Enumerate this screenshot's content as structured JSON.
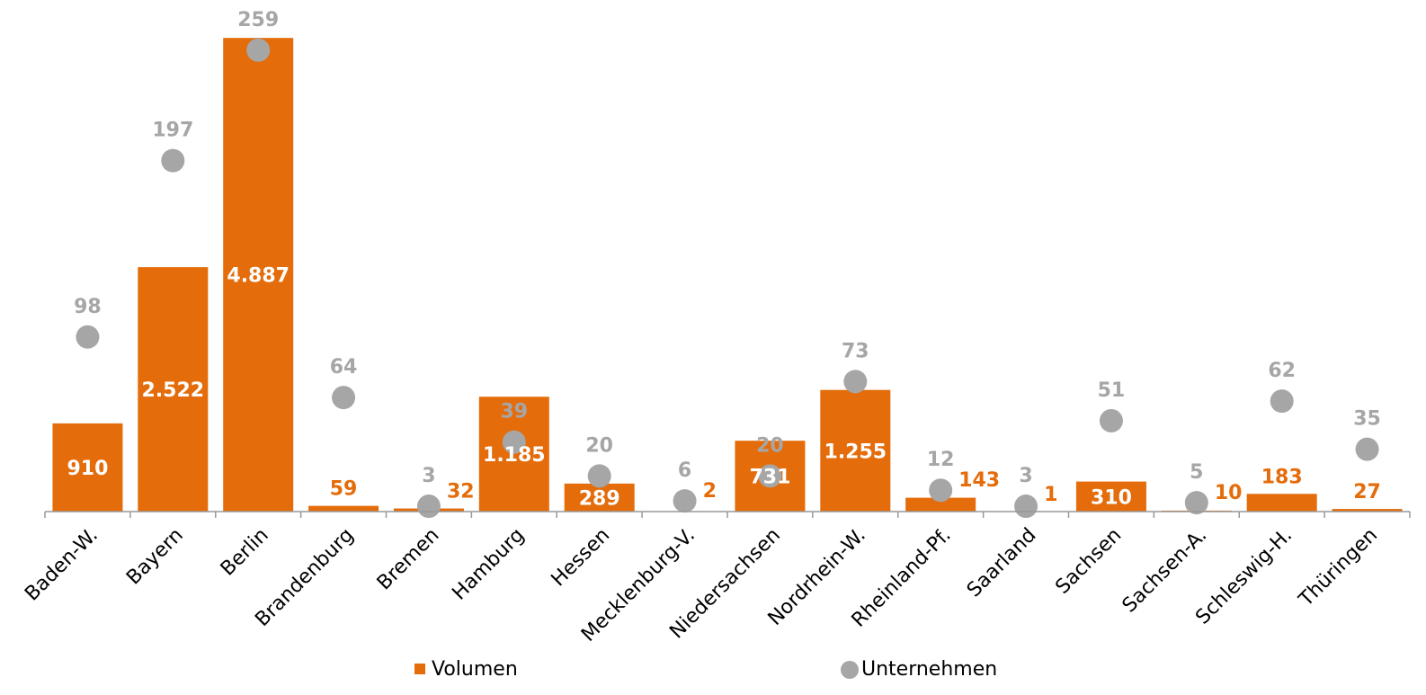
{
  "chart_data": {
    "type": "bar",
    "categories": [
      "Baden-W.",
      "Bayern",
      "Berlin",
      "Brandenburg",
      "Bremen",
      "Hamburg",
      "Hessen",
      "Mecklenburg-V.",
      "Niedersachsen",
      "Nordrhein-W.",
      "Rheinland-Pf.",
      "Saarland",
      "Sachsen",
      "Sachsen-A.",
      "Schleswig-H.",
      "Thüringen"
    ],
    "series": [
      {
        "name": "Volumen",
        "color": "#e46c0a",
        "type": "bar",
        "values": [
          910,
          2522,
          4887,
          59,
          32,
          1185,
          289,
          2,
          731,
          1255,
          143,
          1,
          310,
          10,
          183,
          27
        ],
        "value_labels": [
          "910",
          "2.522",
          "4.887",
          "59",
          "32",
          "1.185",
          "289",
          "2",
          "731",
          "1.255",
          "143",
          "1",
          "310",
          "10",
          "183",
          "27"
        ]
      },
      {
        "name": "Unternehmen",
        "color": "#a6a6a6",
        "type": "scatter",
        "axis": "y2",
        "values": [
          98,
          197,
          259,
          64,
          3,
          39,
          20,
          6,
          20,
          73,
          12,
          3,
          51,
          5,
          62,
          35
        ]
      }
    ],
    "ylim": [
      0,
      5000
    ],
    "y2lim": [
      0,
      272
    ],
    "legend": "bottom"
  }
}
